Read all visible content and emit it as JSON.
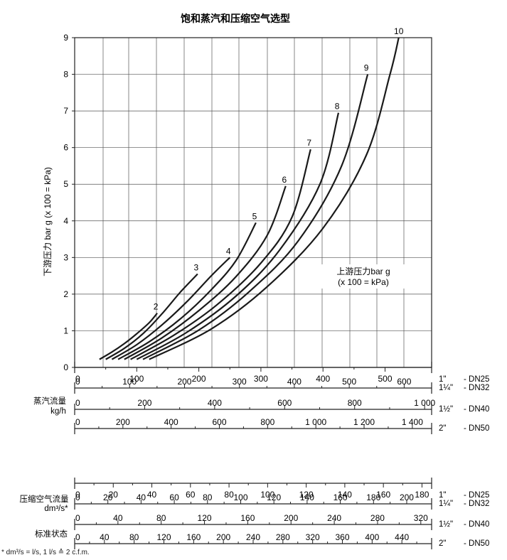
{
  "chart_data": {
    "type": "line",
    "title": "饱和蒸汽和压缩空气选型",
    "ylabel": "下游压力 bar g (x 100 = kPa)",
    "ylim": [
      0,
      9
    ],
    "y_ticks": [
      "0",
      "1",
      "2",
      "3",
      "4",
      "5",
      "6",
      "7",
      "8",
      "9"
    ],
    "annotation": [
      "上游压力bar g",
      "(x 100 = kPa)"
    ],
    "series": [
      {
        "name": "2",
        "points": [
          [
            40,
            0.22
          ],
          [
            60,
            0.42
          ],
          [
            80,
            0.65
          ],
          [
            100,
            0.92
          ],
          [
            120,
            1.22
          ],
          [
            133,
            1.48
          ]
        ]
      },
      {
        "name": "3",
        "points": [
          [
            50,
            0.22
          ],
          [
            80,
            0.52
          ],
          [
            110,
            0.92
          ],
          [
            140,
            1.45
          ],
          [
            170,
            2.05
          ],
          [
            198,
            2.55
          ]
        ]
      },
      {
        "name": "4",
        "points": [
          [
            60,
            0.22
          ],
          [
            100,
            0.62
          ],
          [
            140,
            1.15
          ],
          [
            180,
            1.78
          ],
          [
            220,
            2.5
          ],
          [
            250,
            3.0
          ]
        ]
      },
      {
        "name": "5",
        "points": [
          [
            70,
            0.22
          ],
          [
            120,
            0.7
          ],
          [
            170,
            1.32
          ],
          [
            220,
            2.12
          ],
          [
            260,
            2.92
          ],
          [
            292,
            3.95
          ]
        ]
      },
      {
        "name": "6",
        "points": [
          [
            80,
            0.22
          ],
          [
            140,
            0.8
          ],
          [
            200,
            1.55
          ],
          [
            260,
            2.48
          ],
          [
            310,
            3.6
          ],
          [
            340,
            4.95
          ]
        ]
      },
      {
        "name": "7",
        "points": [
          [
            90,
            0.22
          ],
          [
            160,
            0.88
          ],
          [
            230,
            1.72
          ],
          [
            300,
            2.85
          ],
          [
            350,
            4.1
          ],
          [
            380,
            5.95
          ]
        ]
      },
      {
        "name": "8",
        "points": [
          [
            100,
            0.22
          ],
          [
            180,
            0.95
          ],
          [
            260,
            1.95
          ],
          [
            330,
            3.2
          ],
          [
            395,
            5.0
          ],
          [
            425,
            6.95
          ]
        ]
      },
      {
        "name": "9",
        "points": [
          [
            110,
            0.22
          ],
          [
            200,
            1.02
          ],
          [
            280,
            2.05
          ],
          [
            360,
            3.45
          ],
          [
            430,
            5.5
          ],
          [
            472,
            8.0
          ]
        ]
      },
      {
        "name": "10",
        "points": [
          [
            120,
            0.22
          ],
          [
            220,
            1.05
          ],
          [
            310,
            2.2
          ],
          [
            400,
            3.8
          ],
          [
            470,
            5.8
          ],
          [
            508,
            8.0
          ],
          [
            522,
            9.0
          ]
        ]
      }
    ],
    "flow_axes": {
      "steam_label": [
        "蒸汽流量",
        "kg/h"
      ],
      "air_label": [
        "压缩空气流量",
        "dm³/s*"
      ],
      "std_label": "标准状态",
      "scales": [
        {
          "group": "steam",
          "labels": [
            "0",
            "100",
            "200",
            "300",
            "400",
            "500"
          ],
          "max": 575,
          "size": "1\"",
          "dn": "- DN25"
        },
        {
          "group": "steam",
          "labels": [
            "0",
            "100",
            "200",
            "300",
            "400",
            "500",
            "600"
          ],
          "max": 650,
          "size": "1¼\"",
          "dn": "- DN32"
        },
        {
          "group": "steam",
          "labels": [
            "0",
            "200",
            "400",
            "600",
            "800",
            "1 000"
          ],
          "max": 1020,
          "size": "1½\"",
          "dn": "- DN40"
        },
        {
          "group": "steam",
          "labels": [
            "0",
            "200",
            "400",
            "600",
            "800",
            "1 000",
            "1 200",
            "1 400"
          ],
          "max": 1480,
          "size": "2\"",
          "dn": "- DN50"
        },
        {
          "group": "air",
          "labels": [
            "0",
            "20",
            "40",
            "60",
            "80",
            "100",
            "120",
            "140",
            "160",
            "180"
          ],
          "max": 185,
          "size": "1\"",
          "dn": "- DN25"
        },
        {
          "group": "air",
          "labels": [
            "0",
            "20",
            "40",
            "60",
            "80",
            "100",
            "120",
            "140",
            "160",
            "180",
            "200"
          ],
          "max": 215,
          "size": "1¼\"",
          "dn": "- DN32"
        },
        {
          "group": "air",
          "labels": [
            "0",
            "40",
            "80",
            "120",
            "160",
            "200",
            "240",
            "280",
            "320"
          ],
          "max": 330,
          "size": "1½\"",
          "dn": "- DN40"
        },
        {
          "group": "air",
          "labels": [
            "0",
            "40",
            "80",
            "120",
            "160",
            "200",
            "240",
            "280",
            "320",
            "360",
            "400",
            "440"
          ],
          "max": 480,
          "size": "2\"",
          "dn": "- DN50"
        }
      ]
    }
  },
  "footnote": "* dm³/s = l/s, 1 l/s ≙ 2 c.f.m."
}
